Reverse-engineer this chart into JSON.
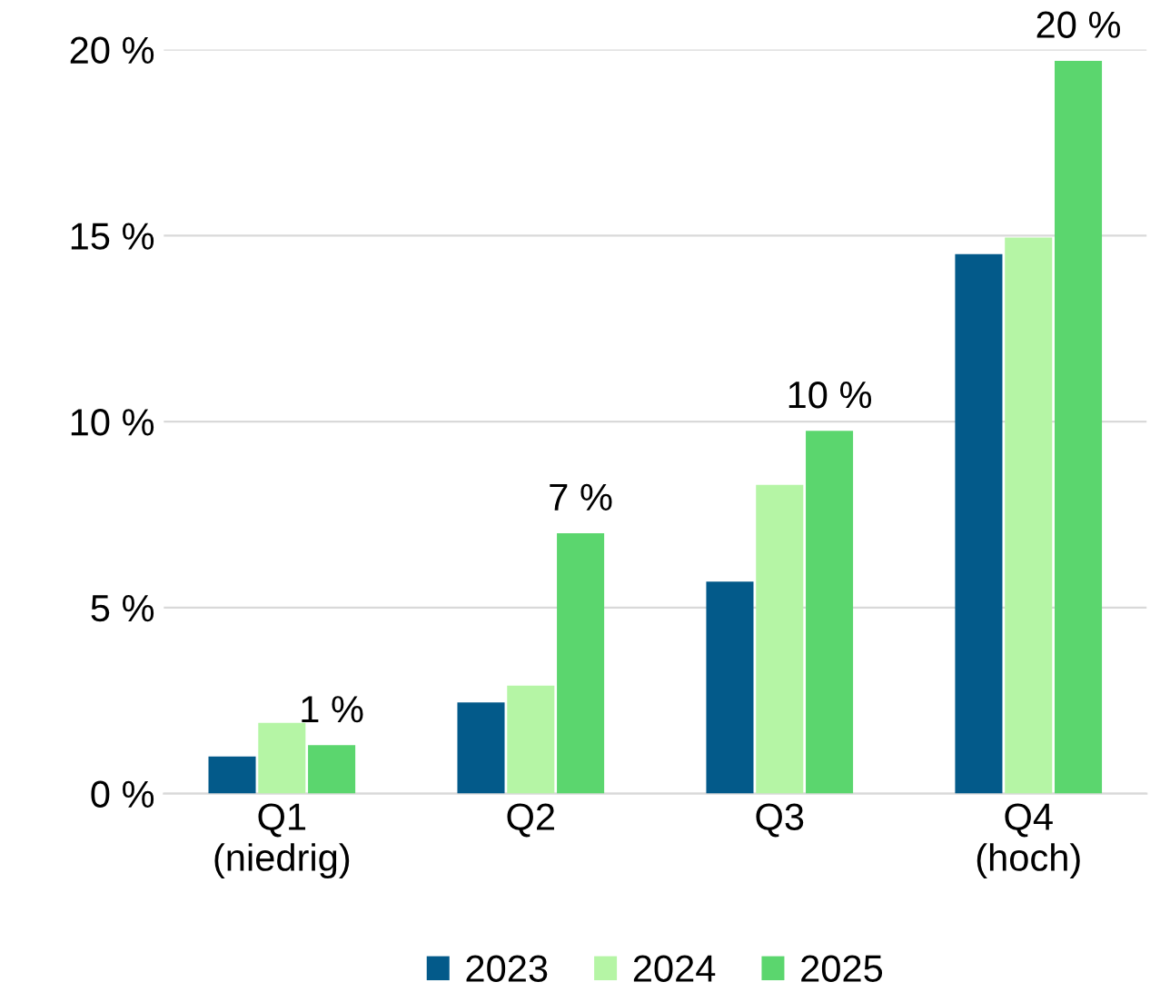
{
  "chart_data": {
    "type": "bar",
    "categories": [
      "Q1\n(niedrig)",
      "Q2",
      "Q3",
      "Q4\n(hoch)"
    ],
    "series": [
      {
        "name": "2023",
        "color": "#035a8a",
        "values": [
          1.0,
          2.45,
          5.7,
          14.5
        ]
      },
      {
        "name": "2024",
        "color": "#b5f5a5",
        "values": [
          1.9,
          2.9,
          8.3,
          14.95
        ]
      },
      {
        "name": "2025",
        "color": "#5bd66e",
        "values": [
          1.3,
          7.0,
          9.75,
          19.7
        ],
        "value_labels": [
          "1 %",
          "7 %",
          "10 %",
          "20 %"
        ]
      }
    ],
    "ylim": [
      0,
      20
    ],
    "yticks": [
      {
        "value": 0,
        "label": "0 %"
      },
      {
        "value": 5,
        "label": "5 %"
      },
      {
        "value": 10,
        "label": "10 %"
      },
      {
        "value": 15,
        "label": "15 %"
      },
      {
        "value": 20,
        "label": "20 %"
      }
    ],
    "grid": "y",
    "legend": "bottom"
  }
}
